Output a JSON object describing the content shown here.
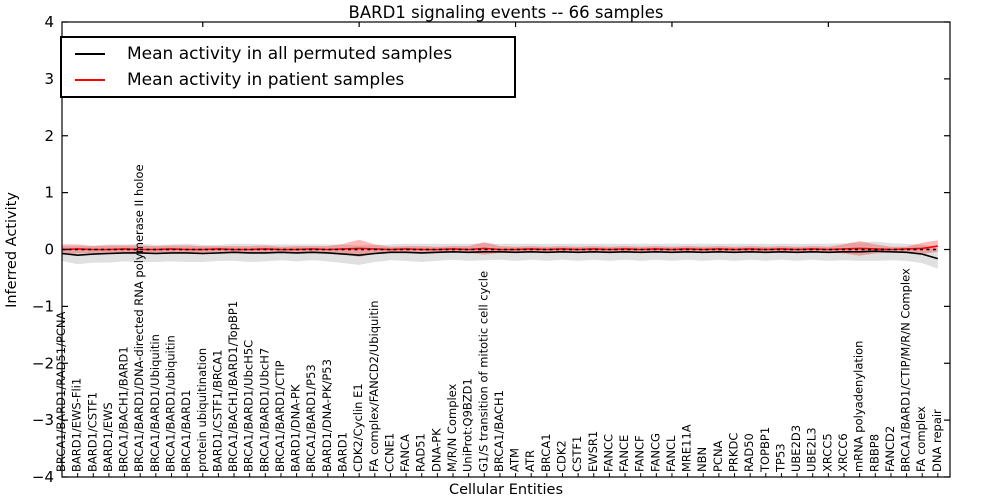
{
  "figure": {
    "title": "BARD1 signaling events -- 66 samples",
    "xlabel": "Cellular Entities",
    "ylabel": "Inferred Activity"
  },
  "legend": {
    "items": [
      {
        "label": "Mean activity in all permuted samples",
        "color": "#000000"
      },
      {
        "label": "Mean activity in patient samples",
        "color": "#ff0000"
      }
    ]
  },
  "chart_data": {
    "type": "line",
    "title": "BARD1 signaling events -- 66 samples",
    "xlabel": "Cellular Entities",
    "ylabel": "Inferred Activity",
    "ylim": [
      -4,
      4
    ],
    "yticks": [
      4,
      3,
      2,
      1,
      0,
      -1,
      -2,
      -3,
      -4
    ],
    "ytick_labels": [
      "4",
      "3",
      "2",
      "1",
      "0",
      "−1",
      "−2",
      "−3",
      "−4"
    ],
    "grid": false,
    "legend_position": "upper left",
    "zero_line": {
      "y": 0,
      "style": "dashed",
      "color": "#000000"
    },
    "top_tick_indices": [
      9,
      19,
      29,
      39,
      49
    ],
    "categories": [
      "BRCA1/BARD1/RAD51/PCNA",
      "BARD1/EWS-Fli1",
      "BARD1/CSTF1",
      "BARD1/EWS",
      "BRCA1/BACH1/BARD1",
      "BRCA1/BARD1/DNA-directed RNA polymerase II holoe",
      "BRCA1/BARD1/Ubiquitin",
      "BRCA1/BARD1/ubiquitin",
      "BRCA1/BARD1",
      "protein ubiquitination",
      "BARD1/CSTF1/BRCA1",
      "BRCA1/BACH1/BARD1/TopBP1",
      "BRCA1/BARD1/UbcH5C",
      "BRCA1/BARD1/UbcH7",
      "BRCA1/BARD1/CTIP",
      "BARD1/DNA-PK",
      "BRCA1/BARD1/P53",
      "BARD1/DNA-PK/P53",
      "BARD1",
      "CDK2/Cyclin E1",
      "FA complex/FANCD2/Ubiquitin",
      "CCNE1",
      "FANCA",
      "RAD51",
      "DNA-PK",
      "M/R/N Complex",
      "UniProt:Q9BZD1",
      "G1/S transition of mitotic cell cycle",
      "BRCA1/BACH1",
      "ATM",
      "ATR",
      "BRCA1",
      "CDK2",
      "CSTF1",
      "EWSR1",
      "FANCC",
      "FANCE",
      "FANCF",
      "FANCG",
      "FANCL",
      "MRE11A",
      "NBN",
      "PCNA",
      "PRKDC",
      "RAD50",
      "TOPBP1",
      "TP53",
      "UBE2D3",
      "UBE2L3",
      "XRCC5",
      "XRCC6",
      "mRNA polyadenylation",
      "RBBP8",
      "FANCD2",
      "BRCA1/BARD1/CTIP/M/R/N Complex",
      "FA complex",
      "DNA repair"
    ],
    "series": [
      {
        "name": "Mean activity in all permuted samples",
        "color": "#000000",
        "band_color": "rgba(0,0,0,0.12)",
        "values": [
          -0.07,
          -0.1,
          -0.08,
          -0.07,
          -0.06,
          -0.06,
          -0.07,
          -0.06,
          -0.06,
          -0.07,
          -0.06,
          -0.05,
          -0.06,
          -0.06,
          -0.05,
          -0.06,
          -0.05,
          -0.06,
          -0.08,
          -0.1,
          -0.07,
          -0.05,
          -0.05,
          -0.06,
          -0.05,
          -0.04,
          -0.05,
          -0.04,
          -0.04,
          -0.05,
          -0.04,
          -0.05,
          -0.04,
          -0.05,
          -0.04,
          -0.05,
          -0.04,
          -0.05,
          -0.04,
          -0.05,
          -0.04,
          -0.05,
          -0.04,
          -0.05,
          -0.04,
          -0.05,
          -0.04,
          -0.05,
          -0.04,
          -0.05,
          -0.04,
          -0.04,
          -0.03,
          -0.04,
          -0.05,
          -0.08,
          -0.16
        ],
        "std": [
          0.13,
          0.16,
          0.15,
          0.16,
          0.15,
          0.16,
          0.15,
          0.15,
          0.16,
          0.15,
          0.14,
          0.15,
          0.16,
          0.15,
          0.14,
          0.15,
          0.14,
          0.15,
          0.16,
          0.17,
          0.15,
          0.14,
          0.15,
          0.16,
          0.15,
          0.14,
          0.15,
          0.15,
          0.14,
          0.15,
          0.14,
          0.15,
          0.14,
          0.15,
          0.14,
          0.15,
          0.14,
          0.15,
          0.14,
          0.15,
          0.14,
          0.15,
          0.14,
          0.15,
          0.14,
          0.15,
          0.14,
          0.15,
          0.14,
          0.15,
          0.15,
          0.16,
          0.17,
          0.15,
          0.15,
          0.16,
          0.18
        ]
      },
      {
        "name": "Mean activity in patient samples",
        "color": "#ff0000",
        "band_color": "rgba(255,0,0,0.28)",
        "values": [
          0.0,
          0.01,
          0.0,
          0.0,
          0.01,
          0.0,
          0.0,
          0.01,
          0.0,
          0.0,
          0.01,
          0.0,
          0.0,
          0.01,
          0.0,
          0.0,
          0.01,
          0.0,
          0.01,
          0.02,
          0.01,
          0.0,
          0.01,
          0.0,
          0.0,
          0.01,
          0.0,
          0.02,
          0.0,
          0.0,
          0.01,
          0.0,
          0.01,
          0.0,
          0.01,
          0.0,
          0.01,
          0.0,
          0.01,
          0.0,
          0.01,
          0.0,
          0.01,
          0.0,
          0.01,
          0.0,
          0.01,
          0.0,
          0.01,
          0.0,
          0.01,
          0.02,
          0.01,
          0.0,
          0.01,
          0.02,
          0.06
        ],
        "std": [
          0.09,
          0.08,
          0.06,
          0.07,
          0.06,
          0.07,
          0.06,
          0.06,
          0.07,
          0.06,
          0.05,
          0.06,
          0.06,
          0.06,
          0.05,
          0.06,
          0.05,
          0.06,
          0.09,
          0.15,
          0.08,
          0.05,
          0.05,
          0.06,
          0.05,
          0.05,
          0.06,
          0.11,
          0.06,
          0.05,
          0.05,
          0.05,
          0.05,
          0.05,
          0.05,
          0.05,
          0.05,
          0.05,
          0.05,
          0.05,
          0.05,
          0.05,
          0.05,
          0.05,
          0.05,
          0.05,
          0.05,
          0.05,
          0.05,
          0.05,
          0.08,
          0.13,
          0.08,
          0.05,
          0.04,
          0.1,
          0.1
        ]
      }
    ]
  }
}
